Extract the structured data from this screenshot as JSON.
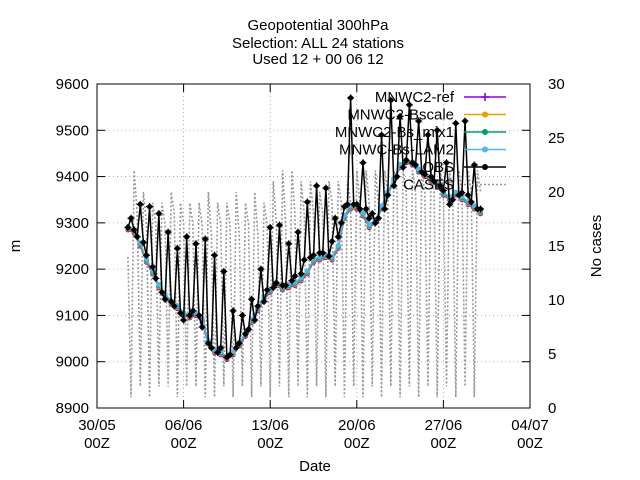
{
  "chart_data": {
    "type": "line",
    "title": [
      "Geopotential 300hPa",
      "Selection: ALL     24 stations",
      "Used 12 + 00 06 12"
    ],
    "xlabel": "Date",
    "ylabel": "m",
    "y2label": "No cases",
    "xlim": [
      0,
      35
    ],
    "ylim": [
      8900,
      9600
    ],
    "y2lim": [
      0,
      30
    ],
    "x_ticks": [
      {
        "value": 0,
        "line1": "30/05",
        "line2": "00Z"
      },
      {
        "value": 7,
        "line1": "06/06",
        "line2": "00Z"
      },
      {
        "value": 14,
        "line1": "13/06",
        "line2": "00Z"
      },
      {
        "value": 21,
        "line1": "20/06",
        "line2": "00Z"
      },
      {
        "value": 28,
        "line1": "27/06",
        "line2": "00Z"
      },
      {
        "value": 35,
        "line1": "04/07",
        "line2": "00Z"
      }
    ],
    "y_ticks": [
      8900,
      9000,
      9100,
      9200,
      9300,
      9400,
      9500,
      9600
    ],
    "y2_ticks": [
      0,
      5,
      10,
      15,
      20,
      25,
      30
    ],
    "grid": true,
    "legend_position": "top-right",
    "series": [
      {
        "name": "MNWC2-ref",
        "color": "#9400d3",
        "marker": "plus"
      },
      {
        "name": "MNWC2-Bscale",
        "color": "#e69f00",
        "marker": "circle"
      },
      {
        "name": "MNWC2-Bs_mix1",
        "color": "#009e73",
        "marker": "circle"
      },
      {
        "name": "MNWC-Bs-LAM2",
        "color": "#56b4e9",
        "marker": "circle"
      },
      {
        "name": "OBS",
        "color": "#000000",
        "marker": "circle"
      }
    ],
    "cases_series": {
      "name": "CASES",
      "color": "#999999",
      "dash": "dotted"
    },
    "model_x": [
      2.5,
      3,
      3.5,
      4,
      4.5,
      5,
      5.5,
      6,
      6.5,
      7,
      7.5,
      8,
      8.5,
      9,
      9.5,
      10,
      10.5,
      11,
      11.5,
      12,
      12.5,
      13,
      13.5,
      14,
      14.5,
      15,
      15.5,
      16,
      16.5,
      17,
      17.5,
      18,
      18.5,
      19,
      19.5,
      20,
      20.5,
      21,
      21.5,
      22,
      22.5,
      23,
      23.5,
      24,
      24.5,
      25,
      25.5,
      26,
      26.5,
      27,
      27.5,
      28,
      28.5,
      29,
      29.5,
      30,
      30.5,
      31
    ],
    "model_values": [
      9285,
      9278,
      9250,
      9215,
      9190,
      9160,
      9140,
      9125,
      9115,
      9100,
      9095,
      9100,
      9085,
      9040,
      9020,
      9015,
      9005,
      9015,
      9035,
      9055,
      9085,
      9110,
      9135,
      9150,
      9165,
      9155,
      9160,
      9165,
      9175,
      9190,
      9215,
      9220,
      9225,
      9220,
      9245,
      9310,
      9330,
      9330,
      9315,
      9290,
      9300,
      9330,
      9360,
      9390,
      9420,
      9430,
      9425,
      9410,
      9400,
      9390,
      9380,
      9360,
      9350,
      9360,
      9350,
      9340,
      9330,
      9320
    ],
    "obs_x": [
      2.5,
      2.75,
      3,
      3.25,
      3.5,
      3.75,
      4,
      4.25,
      4.5,
      4.75,
      5,
      5.25,
      5.5,
      5.75,
      6,
      6.25,
      6.5,
      6.75,
      7,
      7.25,
      7.5,
      7.75,
      8,
      8.25,
      8.5,
      8.75,
      9,
      9.25,
      9.5,
      9.75,
      10,
      10.25,
      10.5,
      10.75,
      11,
      11.25,
      11.5,
      11.75,
      12,
      12.25,
      12.5,
      12.75,
      13,
      13.25,
      13.5,
      13.75,
      14,
      14.25,
      14.5,
      14.75,
      15,
      15.25,
      15.5,
      15.75,
      16,
      16.25,
      16.5,
      16.75,
      17,
      17.25,
      17.5,
      17.75,
      18,
      18.25,
      18.5,
      18.75,
      19,
      19.25,
      19.5,
      19.75,
      20,
      20.25,
      20.5,
      20.75,
      21,
      21.25,
      21.5,
      21.75,
      22,
      22.25,
      22.5,
      22.75,
      23,
      23.25,
      23.5,
      23.75,
      24,
      24.25,
      24.5,
      24.75,
      25,
      25.25,
      25.5,
      25.75,
      26,
      26.25,
      26.5,
      26.75,
      27,
      27.25,
      27.5,
      27.75,
      28,
      28.25,
      28.5,
      28.75,
      29,
      29.25,
      29.5,
      29.75,
      30,
      30.25,
      30.5,
      30.75,
      31
    ],
    "obs_values": [
      9290,
      9310,
      9285,
      9270,
      9340,
      9258,
      9230,
      9335,
      9205,
      9180,
      9320,
      9150,
      9135,
      9280,
      9130,
      9120,
      9245,
      9105,
      9090,
      9270,
      9100,
      9110,
      9255,
      9100,
      9075,
      9265,
      9040,
      9030,
      9230,
      9020,
      9030,
      9195,
      9010,
      9015,
      9110,
      9030,
      9040,
      9100,
      9060,
      9070,
      9135,
      9090,
      9120,
      9200,
      9130,
      9155,
      9290,
      9160,
      9170,
      9295,
      9165,
      9165,
      9255,
      9175,
      9185,
      9280,
      9190,
      9220,
      9345,
      9225,
      9230,
      9380,
      9235,
      9235,
      9375,
      9228,
      9260,
      9310,
      9270,
      9300,
      9335,
      9340,
      9570,
      9340,
      9340,
      9330,
      9430,
      9330,
      9310,
      9320,
      9300,
      9310,
      9490,
      9330,
      9360,
      9565,
      9380,
      9400,
      9530,
      9420,
      9435,
      9555,
      9430,
      9425,
      9520,
      9410,
      9405,
      9490,
      9400,
      9390,
      9500,
      9380,
      9370,
      9430,
      9340,
      9350,
      9515,
      9360,
      9365,
      9520,
      9360,
      9345,
      9425,
      9330,
      9330,
      9455
    ],
    "cases_x": [
      2.5,
      2.75,
      3,
      3.25,
      3.5,
      3.75,
      4,
      4.25,
      4.5,
      4.75,
      5,
      5.25,
      5.5,
      5.75,
      6,
      6.25,
      6.5,
      6.75,
      7,
      7.25,
      7.5,
      7.75,
      8,
      8.25,
      8.5,
      8.75,
      9,
      9.25,
      9.5,
      9.75,
      10,
      10.25,
      10.5,
      10.75,
      11,
      11.25,
      11.5,
      11.75,
      12,
      12.25,
      12.5,
      12.75,
      13,
      13.25,
      13.5,
      13.75,
      14,
      14.25,
      14.5,
      14.75,
      15,
      15.25,
      15.5,
      15.75,
      16,
      16.25,
      16.5,
      16.75,
      17,
      17.25,
      17.5,
      17.75,
      18,
      18.25,
      18.5,
      18.75,
      19,
      19.25,
      19.5,
      19.75,
      20,
      20.25,
      20.5,
      20.75,
      21,
      21.25,
      21.5,
      21.75,
      22,
      22.25,
      22.5,
      22.75,
      23,
      23.25,
      23.5,
      23.75,
      24,
      24.25,
      24.5,
      24.75,
      25,
      25.25,
      25.5,
      25.75,
      26,
      26.25,
      26.5,
      26.75,
      27,
      27.25,
      27.5,
      27.75,
      28,
      28.25,
      28.5,
      28.75,
      29,
      29.25,
      29.5,
      29.75,
      30,
      30.25,
      30.5,
      30.75,
      31
    ],
    "cases_values": [
      14,
      1,
      22,
      18,
      2,
      20,
      17,
      1,
      19,
      17,
      2,
      19,
      17,
      2,
      20,
      18,
      1,
      19,
      17,
      2,
      19,
      17,
      2,
      19,
      17,
      1,
      20,
      16,
      1,
      19,
      17,
      2,
      19,
      17,
      1,
      20,
      16,
      2,
      19,
      17,
      1,
      20,
      16,
      2,
      19,
      17,
      1,
      21,
      17,
      2,
      22,
      17,
      1,
      22,
      18,
      2,
      21,
      18,
      1,
      21,
      18,
      2,
      20,
      18,
      1,
      21,
      19,
      2,
      21,
      19,
      1,
      21,
      19,
      2,
      22,
      19,
      1,
      22,
      19,
      2,
      22,
      19,
      1,
      22,
      20,
      2,
      22,
      20,
      1,
      22,
      20,
      2,
      22,
      20,
      1,
      22,
      20,
      2,
      22,
      20,
      1,
      22,
      20,
      2,
      22,
      20,
      1,
      22,
      20,
      2,
      22,
      20,
      1,
      22,
      20,
      4
    ]
  }
}
